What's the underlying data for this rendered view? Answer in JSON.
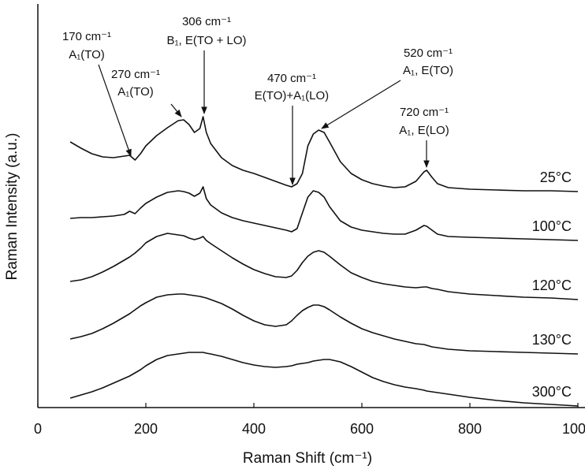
{
  "chart_data": {
    "type": "line",
    "xlabel": "Raman Shift (cm⁻¹)",
    "ylabel": "Raman Intensity (a.u.)",
    "x": [
      60,
      80,
      100,
      120,
      140,
      160,
      170,
      180,
      190,
      200,
      220,
      240,
      260,
      270,
      280,
      290,
      300,
      306,
      312,
      320,
      340,
      360,
      380,
      400,
      420,
      440,
      460,
      470,
      480,
      490,
      500,
      510,
      520,
      530,
      540,
      560,
      580,
      600,
      620,
      640,
      660,
      680,
      700,
      715,
      720,
      730,
      740,
      760,
      800,
      850,
      900,
      950,
      1000
    ],
    "xlim": [
      0,
      1000
    ],
    "xticks": [
      0,
      200,
      400,
      600,
      800,
      1000
    ],
    "ylim": [
      0,
      512
    ],
    "color": "#111111",
    "series": [
      {
        "name": "25°C",
        "values": [
          337,
          329,
          322,
          318,
          317,
          319,
          320,
          314,
          322,
          332,
          345,
          355,
          364,
          365,
          359,
          349,
          354,
          369,
          349,
          335,
          317,
          307,
          301,
          297,
          292,
          287,
          282,
          280,
          284,
          297,
          332,
          347,
          352,
          349,
          337,
          312,
          297,
          289,
          284,
          281,
          279,
          280,
          287,
          299,
          301,
          292,
          284,
          279,
          277,
          276,
          275,
          275,
          274
        ]
      },
      {
        "name": "100°C",
        "values": [
          240,
          241,
          241,
          242,
          243,
          245,
          249,
          246,
          253,
          259,
          267,
          273,
          275,
          274,
          272,
          268,
          272,
          280,
          265,
          257,
          247,
          241,
          237,
          234,
          231,
          228,
          225,
          223,
          227,
          247,
          267,
          275,
          273,
          267,
          255,
          237,
          229,
          225,
          223,
          221,
          220,
          220,
          225,
          231,
          230,
          225,
          220,
          217,
          216,
          215,
          214,
          213,
          212
        ]
      },
      {
        "name": "120°C",
        "values": [
          160,
          162,
          166,
          172,
          179,
          187,
          191,
          196,
          202,
          209,
          217,
          221,
          219,
          218,
          215,
          213,
          215,
          217,
          212,
          208,
          199,
          190,
          182,
          175,
          170,
          166,
          165,
          167,
          174,
          184,
          192,
          197,
          199,
          197,
          192,
          181,
          171,
          165,
          160,
          157,
          155,
          153,
          152,
          153,
          153,
          151,
          150,
          147,
          144,
          142,
          140,
          139,
          137
        ]
      },
      {
        "name": "130°C",
        "values": [
          87,
          90,
          94,
          100,
          107,
          115,
          119,
          124,
          129,
          133,
          140,
          143,
          144,
          144,
          143,
          142,
          141,
          140,
          139,
          137,
          132,
          125,
          117,
          110,
          105,
          103,
          105,
          110,
          117,
          123,
          127,
          130,
          130,
          128,
          124,
          115,
          107,
          100,
          95,
          91,
          87,
          84,
          81,
          80,
          79,
          77,
          76,
          74,
          72,
          71,
          70,
          69,
          68
        ]
      },
      {
        "name": "300°C",
        "values": [
          12,
          16,
          20,
          25,
          31,
          37,
          40,
          44,
          48,
          53,
          61,
          66,
          68,
          69,
          70,
          70,
          70,
          70,
          69,
          68,
          65,
          61,
          57,
          54,
          52,
          51,
          52,
          53,
          55,
          56,
          57,
          59,
          60,
          61,
          61,
          58,
          52,
          45,
          38,
          33,
          29,
          26,
          24,
          22,
          21,
          20,
          19,
          17,
          13,
          9,
          6,
          4,
          2
        ]
      }
    ],
    "annotations": [
      [
        "170 cm⁻¹",
        "A₁(TO)"
      ],
      [
        "270 cm⁻¹",
        "A₁(TO)"
      ],
      [
        "306 cm⁻¹",
        "B₁, E(TO + LO)"
      ],
      [
        "470 cm⁻¹",
        "E(TO)+A₁(LO)"
      ],
      [
        "520 cm⁻¹",
        "A₁, E(TO)"
      ],
      [
        "720 cm⁻¹",
        "A₁, E(LO)"
      ]
    ]
  }
}
